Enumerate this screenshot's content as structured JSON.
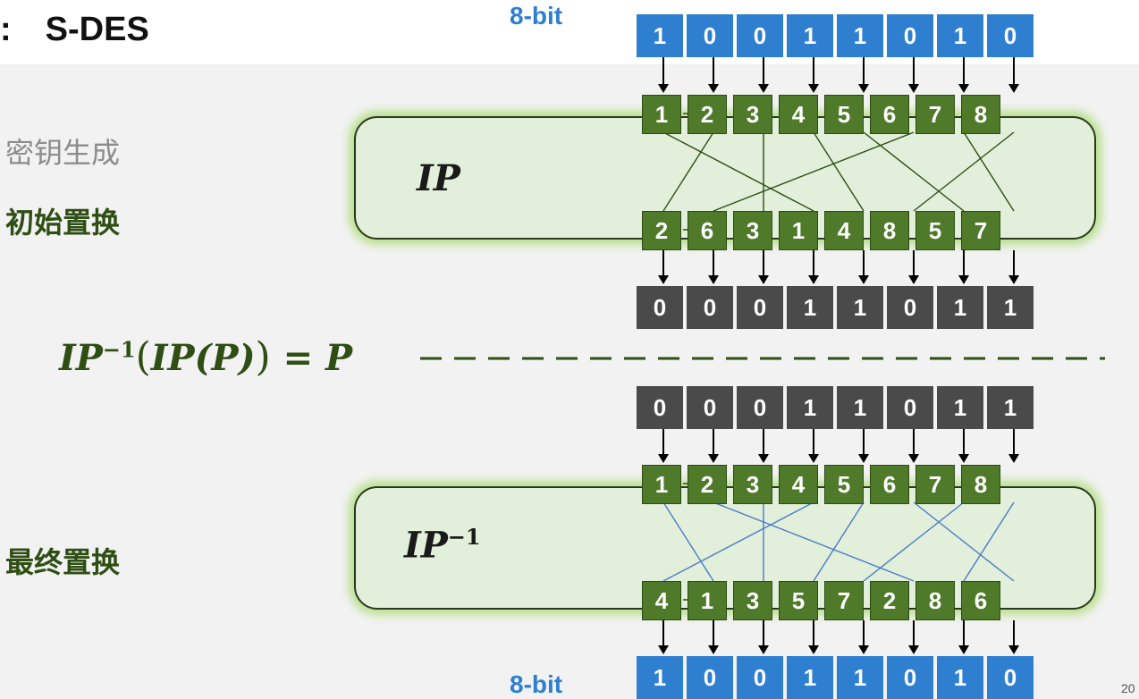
{
  "title": {
    "prefix": ":",
    "text": "S-DES"
  },
  "sidebar": {
    "key_gen": "密钥生成",
    "initial_perm": "初始置换",
    "final_perm": "最终置换"
  },
  "bit_label_top": "8-bit",
  "bit_label_bottom": "8-bit",
  "formula": {
    "a": "IP",
    "b": "−1",
    "c": "(",
    "d": "IP(P)",
    "e": ")",
    "f": " = P"
  },
  "ip_block": {
    "label": "IP",
    "input_bits": [
      "1",
      "0",
      "0",
      "1",
      "1",
      "0",
      "1",
      "0"
    ],
    "positions_top": [
      "1",
      "2",
      "3",
      "4",
      "5",
      "6",
      "7",
      "8"
    ],
    "positions_bottom": [
      "2",
      "6",
      "3",
      "1",
      "4",
      "8",
      "5",
      "7"
    ],
    "output_bits": [
      "0",
      "0",
      "0",
      "1",
      "1",
      "0",
      "1",
      "1"
    ]
  },
  "ip_inv_block": {
    "label": "IP",
    "label_sup": "−1",
    "input_bits": [
      "0",
      "0",
      "0",
      "1",
      "1",
      "0",
      "1",
      "1"
    ],
    "positions_top": [
      "1",
      "2",
      "3",
      "4",
      "5",
      "6",
      "7",
      "8"
    ],
    "positions_bottom": [
      "4",
      "1",
      "3",
      "5",
      "7",
      "2",
      "8",
      "6"
    ],
    "output_bits": [
      "1",
      "0",
      "0",
      "1",
      "1",
      "0",
      "1",
      "0"
    ]
  },
  "colors": {
    "blue_cell": "#2f7fd0",
    "gray_cell": "#4a4a4a",
    "green_cell": "#4f7a2a",
    "ip_line": "#2e4e14",
    "ip_inv_line": "#4a7cc6",
    "box_fill": "#e2efda",
    "glow": "#b9e08f"
  },
  "page_number": "20"
}
